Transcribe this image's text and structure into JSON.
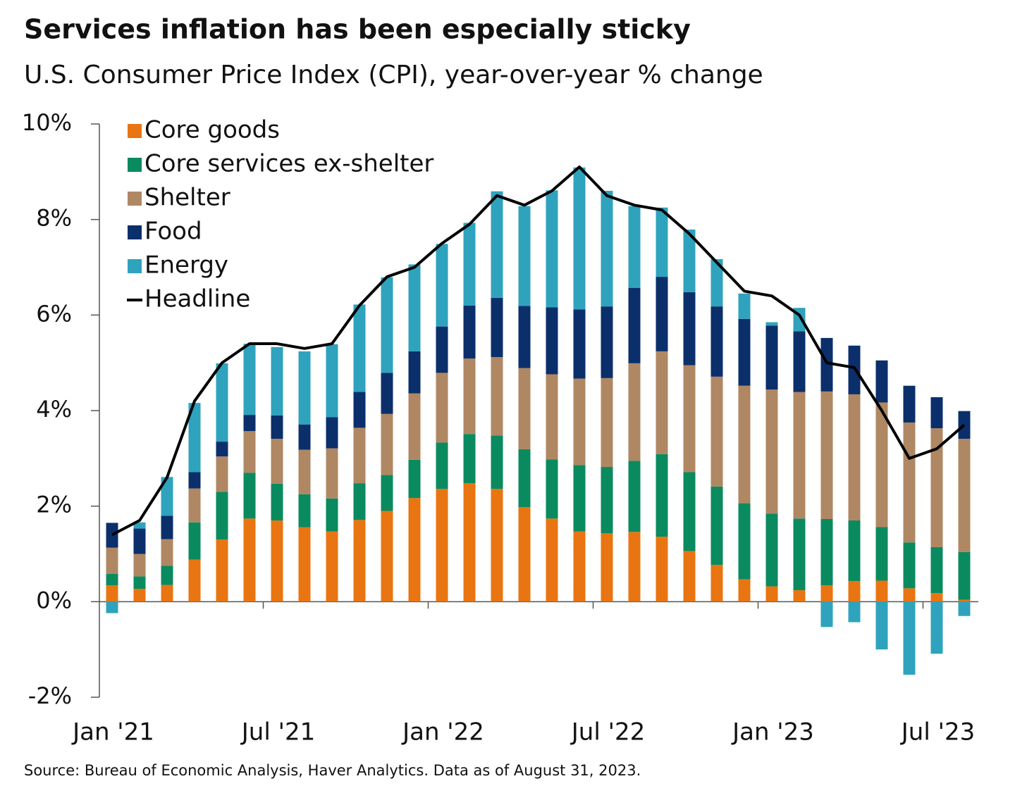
{
  "chart_data": {
    "type": "bar",
    "stacked": true,
    "title": "Services inflation has been especially sticky",
    "subtitle": "U.S. Consumer Price Index (CPI), year-over-year % change",
    "source": "Source: Bureau of Economic Analysis, Haver Analytics. Data as of August 31, 2023.",
    "categories": [
      "Jan '21",
      null,
      null,
      null,
      null,
      null,
      "Jul '21",
      null,
      null,
      null,
      null,
      null,
      "Jan '22",
      null,
      null,
      null,
      null,
      null,
      "Jul '22",
      null,
      null,
      null,
      null,
      null,
      "Jan '23",
      null,
      null,
      null,
      null,
      null,
      "Jul '23",
      null
    ],
    "series": [
      {
        "name": "Core goods",
        "color": "#e87511",
        "values": [
          0.34,
          0.27,
          0.35,
          0.88,
          1.3,
          1.74,
          1.7,
          1.56,
          1.47,
          1.71,
          1.9,
          2.17,
          2.36,
          2.48,
          2.36,
          1.98,
          1.74,
          1.47,
          1.43,
          1.46,
          1.36,
          1.06,
          0.77,
          0.47,
          0.32,
          0.24,
          0.34,
          0.43,
          0.44,
          0.28,
          0.18,
          0.04
        ]
      },
      {
        "name": "Core services ex-shelter",
        "color": "#0a8a5f",
        "values": [
          0.24,
          0.26,
          0.4,
          0.78,
          1.0,
          0.96,
          0.77,
          0.69,
          0.69,
          0.77,
          0.75,
          0.8,
          0.97,
          1.03,
          1.12,
          1.21,
          1.24,
          1.39,
          1.39,
          1.49,
          1.73,
          1.65,
          1.64,
          1.59,
          1.52,
          1.5,
          1.39,
          1.27,
          1.12,
          0.96,
          0.96,
          1.0
        ]
      },
      {
        "name": "Shelter",
        "color": "#b08763",
        "values": [
          0.55,
          0.47,
          0.56,
          0.71,
          0.74,
          0.87,
          0.94,
          0.93,
          1.05,
          1.16,
          1.28,
          1.39,
          1.46,
          1.58,
          1.64,
          1.7,
          1.78,
          1.81,
          1.86,
          2.04,
          2.15,
          2.24,
          2.3,
          2.46,
          2.6,
          2.65,
          2.67,
          2.64,
          2.61,
          2.51,
          2.49,
          2.37
        ]
      },
      {
        "name": "Food",
        "color": "#0b2f6b",
        "values": [
          0.52,
          0.53,
          0.49,
          0.34,
          0.31,
          0.34,
          0.49,
          0.53,
          0.65,
          0.75,
          0.86,
          0.88,
          0.97,
          1.11,
          1.24,
          1.3,
          1.4,
          1.45,
          1.5,
          1.58,
          1.56,
          1.53,
          1.47,
          1.4,
          1.34,
          1.27,
          1.12,
          1.02,
          0.88,
          0.77,
          0.65,
          0.58
        ]
      },
      {
        "name": "Energy",
        "color": "#2fa3bd",
        "values": [
          -0.24,
          0.13,
          0.81,
          1.45,
          1.64,
          1.49,
          1.43,
          1.53,
          1.53,
          1.83,
          2.0,
          1.82,
          1.73,
          1.73,
          2.23,
          2.09,
          2.45,
          2.97,
          2.42,
          1.71,
          1.45,
          1.31,
          0.99,
          0.53,
          0.07,
          0.49,
          -0.53,
          -0.43,
          -1.0,
          -1.53,
          -1.09,
          -0.3
        ]
      },
      {
        "name": "Headline",
        "color": "#000000",
        "type": "line",
        "values": [
          1.4,
          1.7,
          2.6,
          4.2,
          5.0,
          5.4,
          5.4,
          5.3,
          5.4,
          6.2,
          6.8,
          7.0,
          7.5,
          7.9,
          8.5,
          8.3,
          8.6,
          9.1,
          8.5,
          8.3,
          8.2,
          7.7,
          7.1,
          6.5,
          6.4,
          6.0,
          5.0,
          4.9,
          4.0,
          3.0,
          3.2,
          3.7
        ]
      }
    ],
    "ylim": [
      -2,
      10
    ],
    "yticks": [
      {
        "value": -2,
        "label": "-2%"
      },
      {
        "value": 0,
        "label": "0%"
      },
      {
        "value": 2,
        "label": "2%"
      },
      {
        "value": 4,
        "label": "4%"
      },
      {
        "value": 6,
        "label": "6%"
      },
      {
        "value": 8,
        "label": "8%"
      },
      {
        "value": 10,
        "label": "10%"
      }
    ],
    "legend": "top-left"
  }
}
